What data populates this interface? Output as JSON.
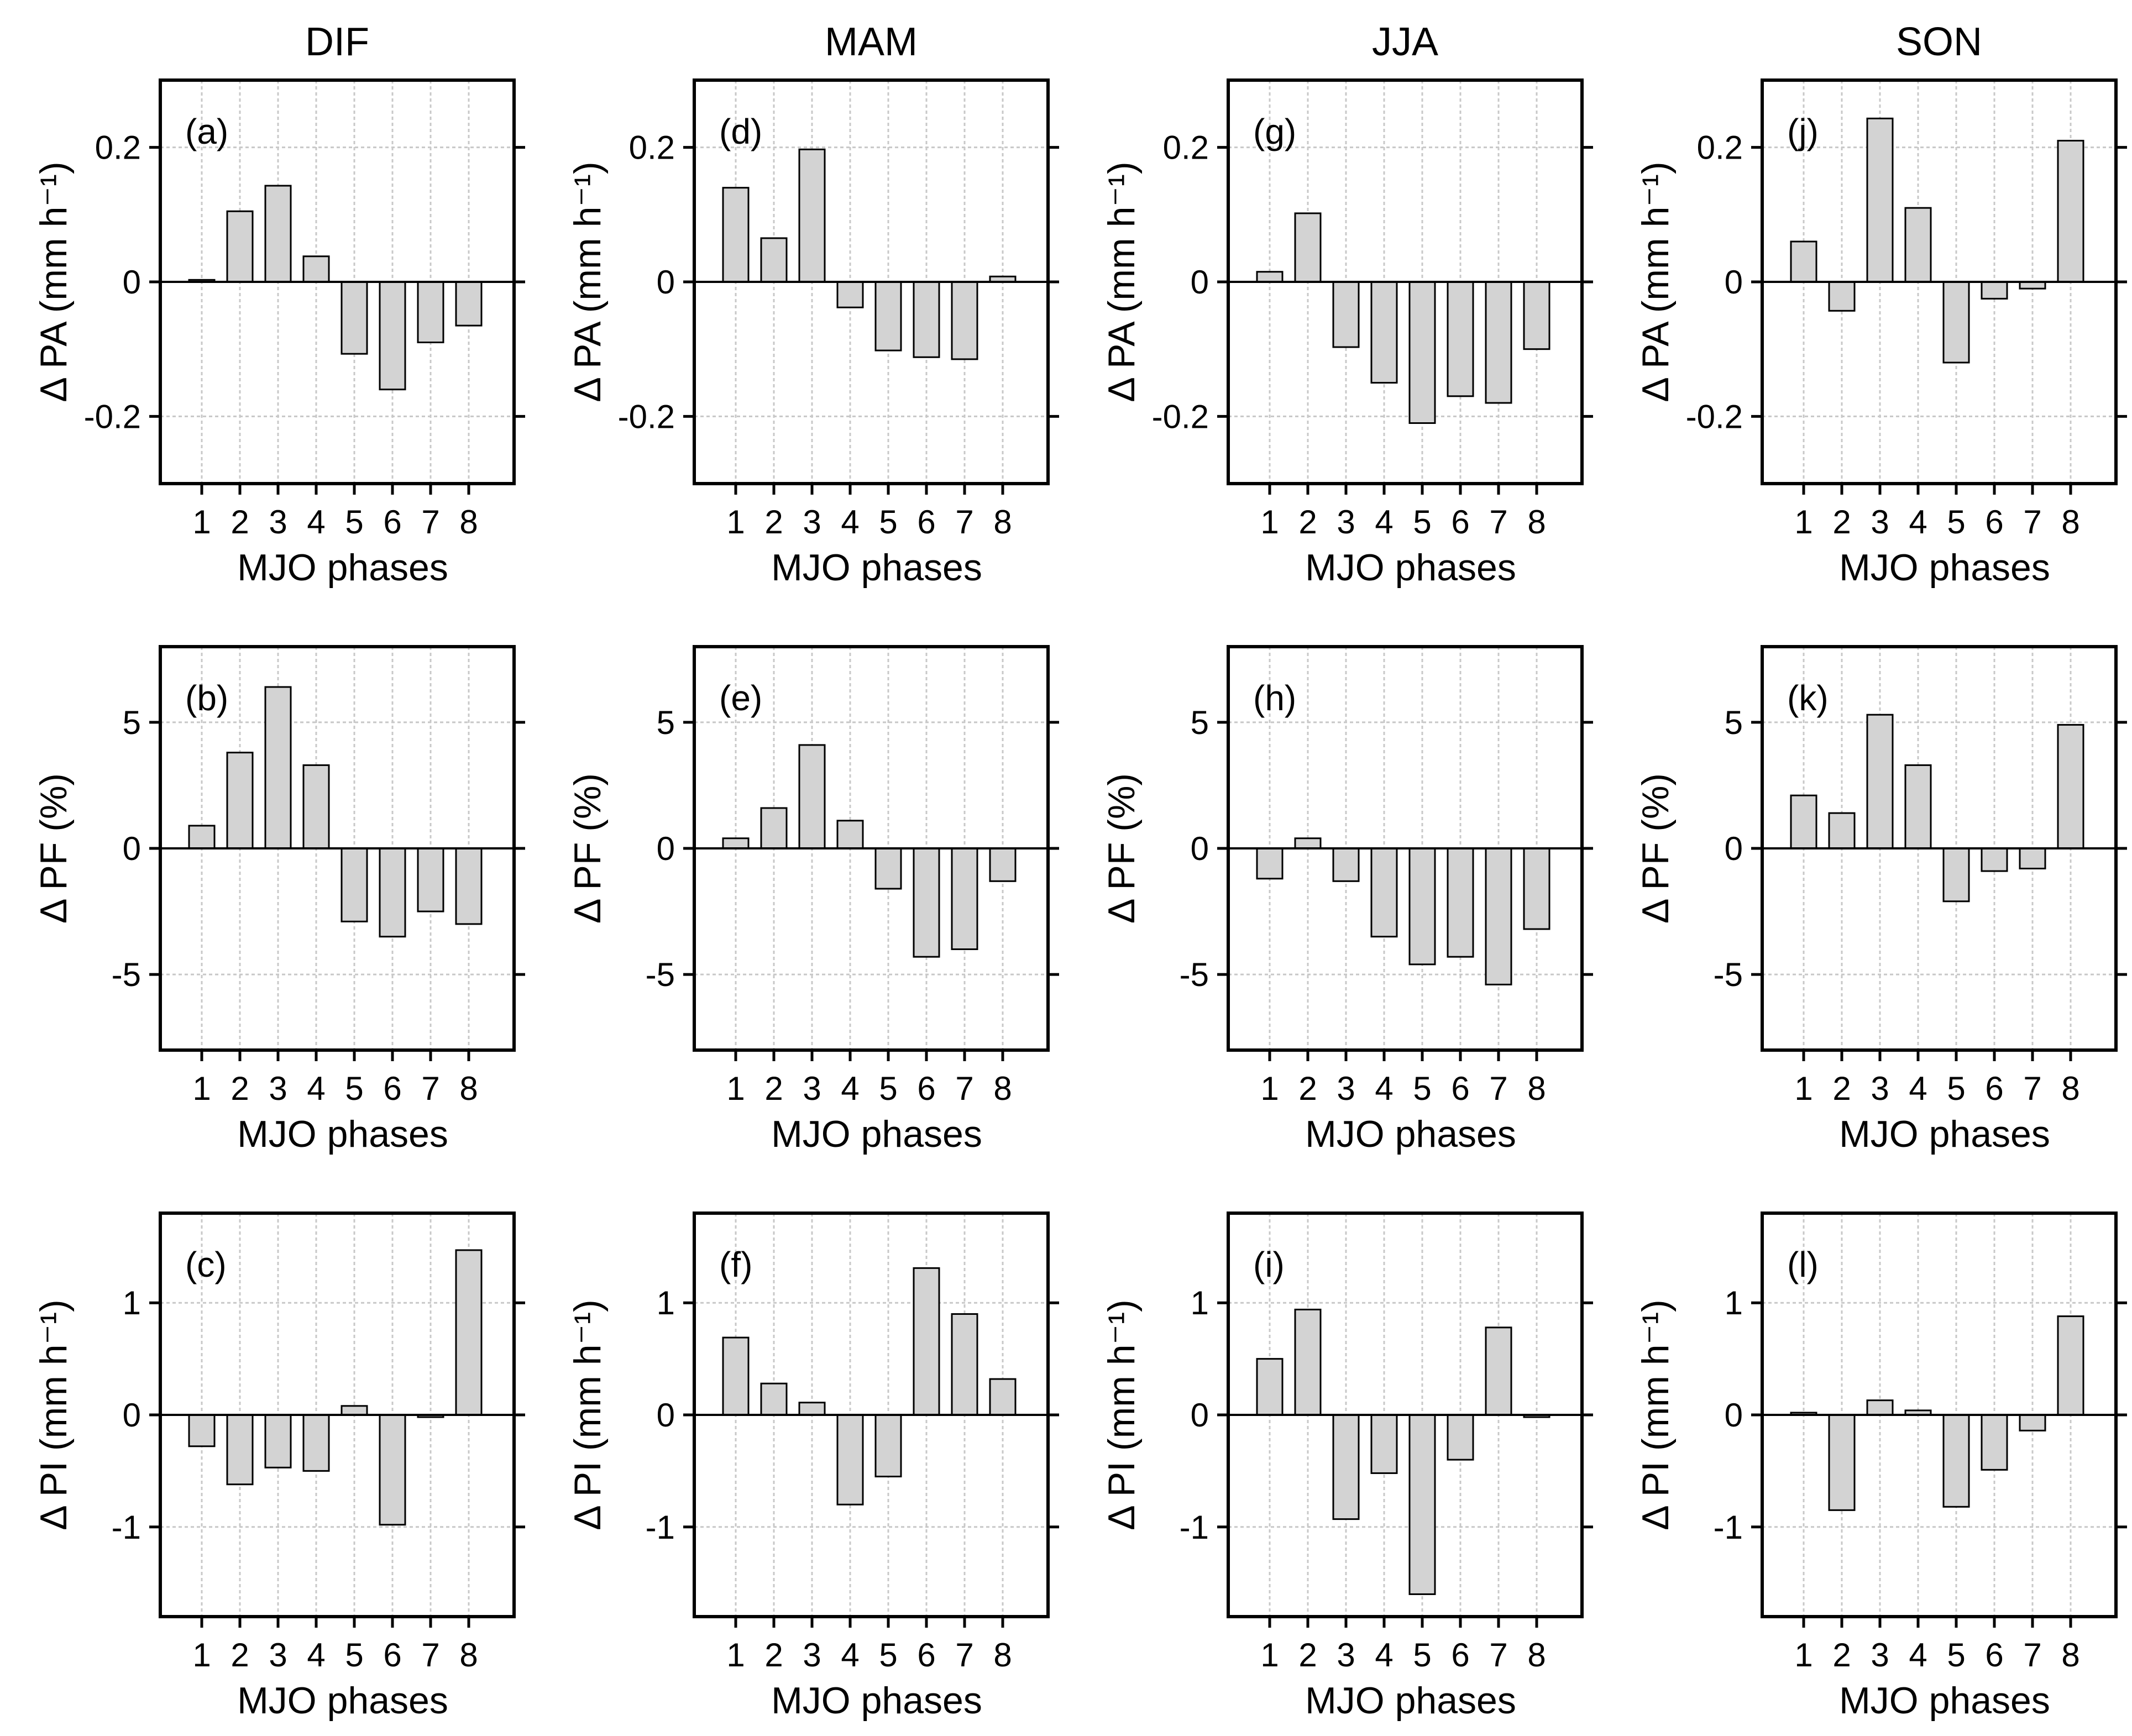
{
  "chart_data": [
    {
      "type": "bar",
      "label": "(a)",
      "column_title": "DIF",
      "xlabel": "MJO phases",
      "ylabel": "Δ PA (mm h⁻¹)",
      "categories": [
        "1",
        "2",
        "3",
        "4",
        "5",
        "6",
        "7",
        "8"
      ],
      "values": [
        0.003,
        0.105,
        0.143,
        0.038,
        -0.107,
        -0.16,
        -0.09,
        -0.065
      ],
      "ylim": [
        -0.3,
        0.3
      ],
      "yticks": [
        -0.2,
        0,
        0.2
      ],
      "ytick_labels": [
        "-0.2",
        "0",
        "0.2"
      ],
      "grid": true
    },
    {
      "type": "bar",
      "label": "(d)",
      "column_title": "MAM",
      "xlabel": "MJO phases",
      "ylabel": "Δ PA (mm h⁻¹)",
      "categories": [
        "1",
        "2",
        "3",
        "4",
        "5",
        "6",
        "7",
        "8"
      ],
      "values": [
        0.14,
        0.065,
        0.197,
        -0.038,
        -0.102,
        -0.112,
        -0.115,
        0.008
      ],
      "ylim": [
        -0.3,
        0.3
      ],
      "yticks": [
        -0.2,
        0,
        0.2
      ],
      "ytick_labels": [
        "-0.2",
        "0",
        "0.2"
      ],
      "grid": true
    },
    {
      "type": "bar",
      "label": "(g)",
      "column_title": "JJA",
      "xlabel": "MJO phases",
      "ylabel": "Δ PA (mm h⁻¹)",
      "categories": [
        "1",
        "2",
        "3",
        "4",
        "5",
        "6",
        "7",
        "8"
      ],
      "values": [
        0.015,
        0.102,
        -0.097,
        -0.15,
        -0.21,
        -0.17,
        -0.18,
        -0.1
      ],
      "ylim": [
        -0.3,
        0.3
      ],
      "yticks": [
        -0.2,
        0,
        0.2
      ],
      "ytick_labels": [
        "-0.2",
        "0",
        "0.2"
      ],
      "grid": true
    },
    {
      "type": "bar",
      "label": "(j)",
      "column_title": "SON",
      "xlabel": "MJO phases",
      "ylabel": "Δ PA (mm h⁻¹)",
      "categories": [
        "1",
        "2",
        "3",
        "4",
        "5",
        "6",
        "7",
        "8"
      ],
      "values": [
        0.06,
        -0.043,
        0.243,
        0.11,
        -0.12,
        -0.025,
        -0.01,
        0.21
      ],
      "ylim": [
        -0.3,
        0.3
      ],
      "yticks": [
        -0.2,
        0,
        0.2
      ],
      "ytick_labels": [
        "-0.2",
        "0",
        "0.2"
      ],
      "grid": true
    },
    {
      "type": "bar",
      "label": "(b)",
      "column_title": "",
      "xlabel": "MJO phases",
      "ylabel": "Δ PF (%)",
      "categories": [
        "1",
        "2",
        "3",
        "4",
        "5",
        "6",
        "7",
        "8"
      ],
      "values": [
        0.9,
        3.8,
        6.4,
        3.3,
        -2.9,
        -3.5,
        -2.5,
        -3.0
      ],
      "ylim": [
        -8,
        8
      ],
      "yticks": [
        -5,
        0,
        5
      ],
      "ytick_labels": [
        "-5",
        "0",
        "5"
      ],
      "grid": true
    },
    {
      "type": "bar",
      "label": "(e)",
      "column_title": "",
      "xlabel": "MJO phases",
      "ylabel": "Δ PF (%)",
      "categories": [
        "1",
        "2",
        "3",
        "4",
        "5",
        "6",
        "7",
        "8"
      ],
      "values": [
        0.4,
        1.6,
        4.1,
        1.1,
        -1.6,
        -4.3,
        -4.0,
        -1.3
      ],
      "ylim": [
        -8,
        8
      ],
      "yticks": [
        -5,
        0,
        5
      ],
      "ytick_labels": [
        "-5",
        "0",
        "5"
      ],
      "grid": true
    },
    {
      "type": "bar",
      "label": "(h)",
      "column_title": "",
      "xlabel": "MJO phases",
      "ylabel": "Δ PF (%)",
      "categories": [
        "1",
        "2",
        "3",
        "4",
        "5",
        "6",
        "7",
        "8"
      ],
      "values": [
        -1.2,
        0.4,
        -1.3,
        -3.5,
        -4.6,
        -4.3,
        -5.4,
        -3.2
      ],
      "ylim": [
        -8,
        8
      ],
      "yticks": [
        -5,
        0,
        5
      ],
      "ytick_labels": [
        "-5",
        "0",
        "5"
      ],
      "grid": true
    },
    {
      "type": "bar",
      "label": "(k)",
      "column_title": "",
      "xlabel": "MJO phases",
      "ylabel": "Δ PF (%)",
      "categories": [
        "1",
        "2",
        "3",
        "4",
        "5",
        "6",
        "7",
        "8"
      ],
      "values": [
        2.1,
        1.4,
        5.3,
        3.3,
        -2.1,
        -0.9,
        -0.8,
        4.9
      ],
      "ylim": [
        -8,
        8
      ],
      "yticks": [
        -5,
        0,
        5
      ],
      "ytick_labels": [
        "-5",
        "0",
        "5"
      ],
      "grid": true
    },
    {
      "type": "bar",
      "label": "(c)",
      "column_title": "",
      "xlabel": "MJO phases",
      "ylabel": "Δ PI (mm h⁻¹)",
      "categories": [
        "1",
        "2",
        "3",
        "4",
        "5",
        "6",
        "7",
        "8"
      ],
      "values": [
        -0.28,
        -0.62,
        -0.47,
        -0.5,
        0.08,
        -0.98,
        -0.02,
        1.47
      ],
      "ylim": [
        -1.8,
        1.8
      ],
      "yticks": [
        -1,
        0,
        1
      ],
      "ytick_labels": [
        "-1",
        "0",
        "1"
      ],
      "grid": true
    },
    {
      "type": "bar",
      "label": "(f)",
      "column_title": "",
      "xlabel": "MJO phases",
      "ylabel": "Δ PI (mm h⁻¹)",
      "categories": [
        "1",
        "2",
        "3",
        "4",
        "5",
        "6",
        "7",
        "8"
      ],
      "values": [
        0.69,
        0.28,
        0.11,
        -0.8,
        -0.55,
        1.31,
        0.9,
        0.32
      ],
      "ylim": [
        -1.8,
        1.8
      ],
      "yticks": [
        -1,
        0,
        1
      ],
      "ytick_labels": [
        "-1",
        "0",
        "1"
      ],
      "grid": true
    },
    {
      "type": "bar",
      "label": "(i)",
      "column_title": "",
      "xlabel": "MJO phases",
      "ylabel": "Δ PI (mm h⁻¹)",
      "categories": [
        "1",
        "2",
        "3",
        "4",
        "5",
        "6",
        "7",
        "8"
      ],
      "values": [
        0.5,
        0.94,
        -0.93,
        -0.52,
        -1.6,
        -0.4,
        0.78,
        -0.02
      ],
      "ylim": [
        -1.8,
        1.8
      ],
      "yticks": [
        -1,
        0,
        1
      ],
      "ytick_labels": [
        "-1",
        "0",
        "1"
      ],
      "grid": true
    },
    {
      "type": "bar",
      "label": "(l)",
      "column_title": "",
      "xlabel": "MJO phases",
      "ylabel": "Δ PI (mm h⁻¹)",
      "categories": [
        "1",
        "2",
        "3",
        "4",
        "5",
        "6",
        "7",
        "8"
      ],
      "values": [
        0.02,
        -0.85,
        0.13,
        0.04,
        -0.82,
        -0.49,
        -0.14,
        0.88
      ],
      "ylim": [
        -1.8,
        1.8
      ],
      "yticks": [
        -1,
        0,
        1
      ],
      "ytick_labels": [
        "-1",
        "0",
        "1"
      ],
      "grid": true
    }
  ]
}
